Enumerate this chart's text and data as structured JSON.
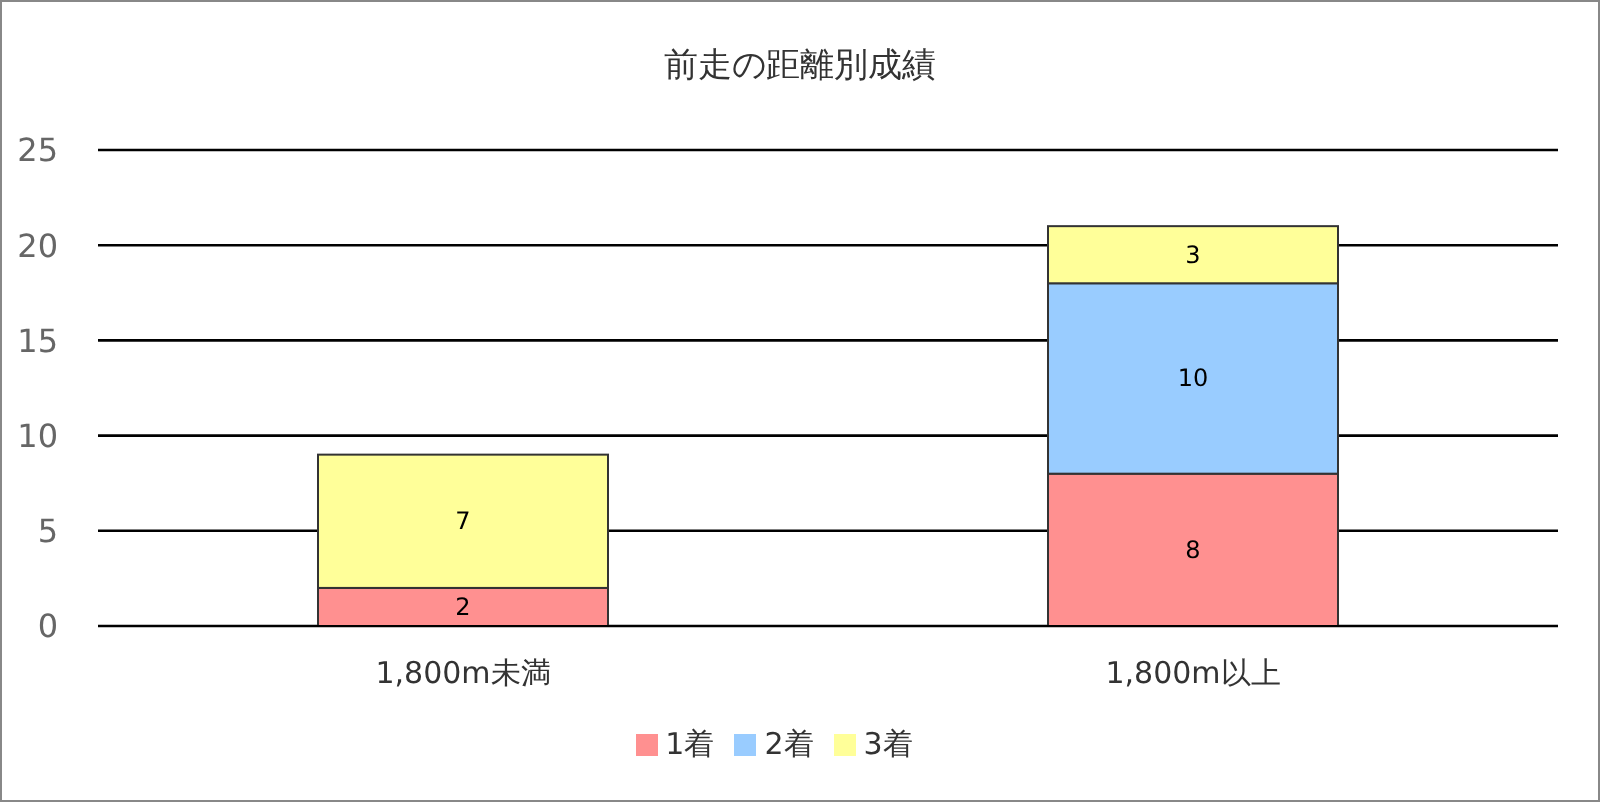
{
  "chart_data": {
    "type": "bar",
    "title": "前走の距離別成績",
    "categories": [
      "1,800m未満",
      "1,800m以上"
    ],
    "stacked": true,
    "ylim": [
      0,
      25
    ],
    "yticks": [
      0,
      5,
      10,
      15,
      20,
      25
    ],
    "grid": "y",
    "legend": "bottom",
    "series": [
      {
        "name": "1着",
        "color": "#ff9090",
        "values": [
          2,
          8
        ],
        "value_labels": [
          "2",
          "8"
        ]
      },
      {
        "name": "2着",
        "color": "#99ccff",
        "values": [
          0,
          10
        ],
        "value_labels": [
          null,
          "10"
        ]
      },
      {
        "name": "3着",
        "color": "#ffff99",
        "values": [
          7,
          3
        ],
        "value_labels": [
          "7",
          "3"
        ]
      }
    ]
  }
}
